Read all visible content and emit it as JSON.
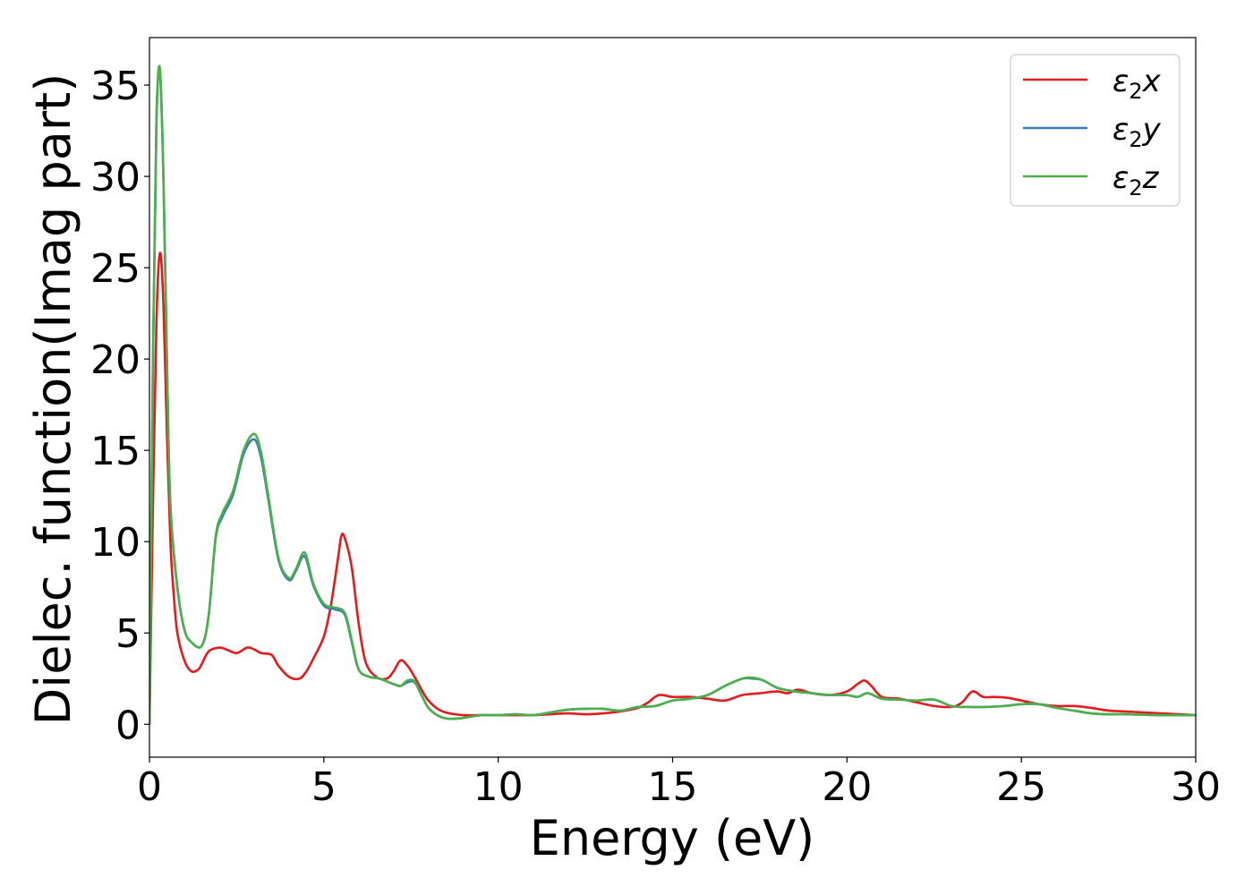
{
  "chart_data": {
    "type": "line",
    "title": "",
    "xlabel": "Energy (eV)",
    "ylabel": "Dielec. function(Imag part)",
    "xlim": [
      0,
      30
    ],
    "ylim": [
      -1.8,
      37.6
    ],
    "xticks": [
      0,
      5,
      10,
      15,
      20,
      25,
      30
    ],
    "yticks": [
      0,
      5,
      10,
      15,
      20,
      25,
      30,
      35
    ],
    "grid": false,
    "legend_position": "top-right",
    "legend_base": "ε",
    "series": [
      {
        "name": "ε2x",
        "sub": "2",
        "axis": "x",
        "color": "#e41a1c",
        "x": [
          0,
          0.1,
          0.2,
          0.3,
          0.4,
          0.5,
          0.6,
          0.7,
          0.8,
          1.0,
          1.2,
          1.4,
          1.5,
          1.7,
          2.0,
          2.2,
          2.5,
          2.8,
          3.0,
          3.2,
          3.5,
          3.7,
          4.0,
          4.3,
          4.5,
          4.7,
          5.0,
          5.2,
          5.4,
          5.5,
          5.6,
          5.8,
          6.0,
          6.2,
          6.5,
          6.8,
          7.0,
          7.2,
          7.4,
          7.6,
          7.8,
          8.0,
          8.3,
          8.6,
          9.0,
          9.5,
          10.0,
          10.5,
          11.0,
          11.5,
          12.0,
          12.5,
          13.0,
          13.5,
          14.0,
          14.3,
          14.6,
          15.0,
          15.5,
          16.0,
          16.5,
          17.0,
          17.5,
          18.0,
          18.3,
          18.6,
          19.0,
          19.5,
          20.0,
          20.3,
          20.5,
          20.7,
          21.0,
          21.5,
          22.0,
          22.5,
          23.0,
          23.3,
          23.6,
          23.9,
          24.2,
          24.6,
          25.0,
          25.5,
          26.0,
          26.5,
          27.0,
          27.5,
          28.0,
          28.5,
          29.0,
          30.0
        ],
        "y": [
          0,
          12,
          22,
          25.8,
          23,
          16,
          10,
          7,
          5,
          3.5,
          2.9,
          3.0,
          3.3,
          4.0,
          4.2,
          4.1,
          3.9,
          4.2,
          4.1,
          3.9,
          3.8,
          3.2,
          2.6,
          2.5,
          2.9,
          3.6,
          4.8,
          6.5,
          9.0,
          10.3,
          10.2,
          8.6,
          5.5,
          3.4,
          2.6,
          2.5,
          2.9,
          3.5,
          3.2,
          2.6,
          1.9,
          1.3,
          0.8,
          0.6,
          0.5,
          0.5,
          0.5,
          0.5,
          0.5,
          0.55,
          0.6,
          0.55,
          0.6,
          0.7,
          0.9,
          1.2,
          1.6,
          1.5,
          1.5,
          1.4,
          1.3,
          1.6,
          1.7,
          1.8,
          1.7,
          1.9,
          1.7,
          1.6,
          1.8,
          2.2,
          2.4,
          2.1,
          1.5,
          1.4,
          1.2,
          1.0,
          0.95,
          1.2,
          1.8,
          1.5,
          1.5,
          1.45,
          1.3,
          1.1,
          1.0,
          1.0,
          0.9,
          0.75,
          0.7,
          0.65,
          0.6,
          0.5
        ]
      },
      {
        "name": "ε2y",
        "sub": "2",
        "axis": "y",
        "color": "#377eb8",
        "x": [
          0,
          0.1,
          0.2,
          0.3,
          0.4,
          0.5,
          0.6,
          0.8,
          1.0,
          1.2,
          1.5,
          1.7,
          1.9,
          2.1,
          2.4,
          2.7,
          3.0,
          3.2,
          3.4,
          3.7,
          4.0,
          4.2,
          4.45,
          4.7,
          5.0,
          5.3,
          5.6,
          5.8,
          6.0,
          6.3,
          6.6,
          7.0,
          7.2,
          7.4,
          7.6,
          7.8,
          8.0,
          8.3,
          8.6,
          9.0,
          9.5,
          10.0,
          10.5,
          11.0,
          11.5,
          12.0,
          12.5,
          13.0,
          13.5,
          14.0,
          14.5,
          15.0,
          15.5,
          16.0,
          16.5,
          17.0,
          17.3,
          17.6,
          18.0,
          18.5,
          19.0,
          19.5,
          20.0,
          20.3,
          20.6,
          21.0,
          21.5,
          22.0,
          22.5,
          23.0,
          23.5,
          24.0,
          24.5,
          25.0,
          25.5,
          26.0,
          26.5,
          27.0,
          27.5,
          28.0,
          29.0,
          30.0
        ],
        "y": [
          0,
          20,
          33,
          35.7,
          30,
          20,
          12,
          7.5,
          5.2,
          4.5,
          4.3,
          6.0,
          10.2,
          11.4,
          12.6,
          14.8,
          15.6,
          14.6,
          12.4,
          9.0,
          7.9,
          8.4,
          9.2,
          7.6,
          6.5,
          6.3,
          6.0,
          4.5,
          3.0,
          2.6,
          2.5,
          2.2,
          2.1,
          2.3,
          2.3,
          1.6,
          0.9,
          0.45,
          0.3,
          0.35,
          0.5,
          0.5,
          0.55,
          0.5,
          0.65,
          0.8,
          0.85,
          0.85,
          0.75,
          0.95,
          1.0,
          1.3,
          1.4,
          1.6,
          2.1,
          2.5,
          2.5,
          2.4,
          2.0,
          1.8,
          1.7,
          1.6,
          1.6,
          1.5,
          1.7,
          1.4,
          1.35,
          1.3,
          1.35,
          1.0,
          0.95,
          0.95,
          1.0,
          1.1,
          1.1,
          0.9,
          0.75,
          0.6,
          0.55,
          0.55,
          0.5,
          0.5
        ]
      },
      {
        "name": "ε2z",
        "sub": "2",
        "axis": "z",
        "color": "#4daf4a",
        "x": [
          0,
          0.1,
          0.2,
          0.3,
          0.4,
          0.5,
          0.6,
          0.8,
          1.0,
          1.2,
          1.5,
          1.7,
          1.9,
          2.1,
          2.4,
          2.7,
          3.0,
          3.2,
          3.4,
          3.7,
          4.0,
          4.2,
          4.45,
          4.7,
          5.0,
          5.3,
          5.6,
          5.8,
          6.0,
          6.3,
          6.6,
          7.0,
          7.2,
          7.4,
          7.6,
          7.8,
          8.0,
          8.3,
          8.6,
          9.0,
          9.5,
          10.0,
          10.5,
          11.0,
          11.5,
          12.0,
          12.5,
          13.0,
          13.5,
          14.0,
          14.5,
          15.0,
          15.5,
          16.0,
          16.5,
          17.0,
          17.3,
          17.6,
          18.0,
          18.5,
          19.0,
          19.5,
          20.0,
          20.3,
          20.6,
          21.0,
          21.5,
          22.0,
          22.5,
          23.0,
          23.5,
          24.0,
          24.5,
          25.0,
          25.5,
          26.0,
          26.5,
          27.0,
          27.5,
          28.0,
          29.0,
          30.0
        ],
        "y": [
          0,
          20,
          33,
          35.9,
          30,
          20,
          12,
          7.5,
          5.2,
          4.5,
          4.3,
          6.0,
          10.3,
          11.6,
          12.8,
          15.0,
          15.9,
          14.9,
          12.6,
          9.1,
          8.0,
          8.5,
          9.4,
          7.7,
          6.6,
          6.4,
          6.1,
          4.6,
          3.0,
          2.6,
          2.5,
          2.2,
          2.1,
          2.4,
          2.35,
          1.6,
          0.9,
          0.45,
          0.3,
          0.35,
          0.5,
          0.5,
          0.55,
          0.5,
          0.65,
          0.8,
          0.85,
          0.85,
          0.75,
          0.95,
          1.0,
          1.3,
          1.4,
          1.6,
          2.1,
          2.5,
          2.55,
          2.4,
          2.0,
          1.8,
          1.7,
          1.6,
          1.6,
          1.5,
          1.7,
          1.4,
          1.35,
          1.3,
          1.35,
          1.0,
          0.95,
          0.95,
          1.0,
          1.1,
          1.1,
          0.9,
          0.75,
          0.6,
          0.55,
          0.55,
          0.5,
          0.5
        ]
      }
    ]
  }
}
